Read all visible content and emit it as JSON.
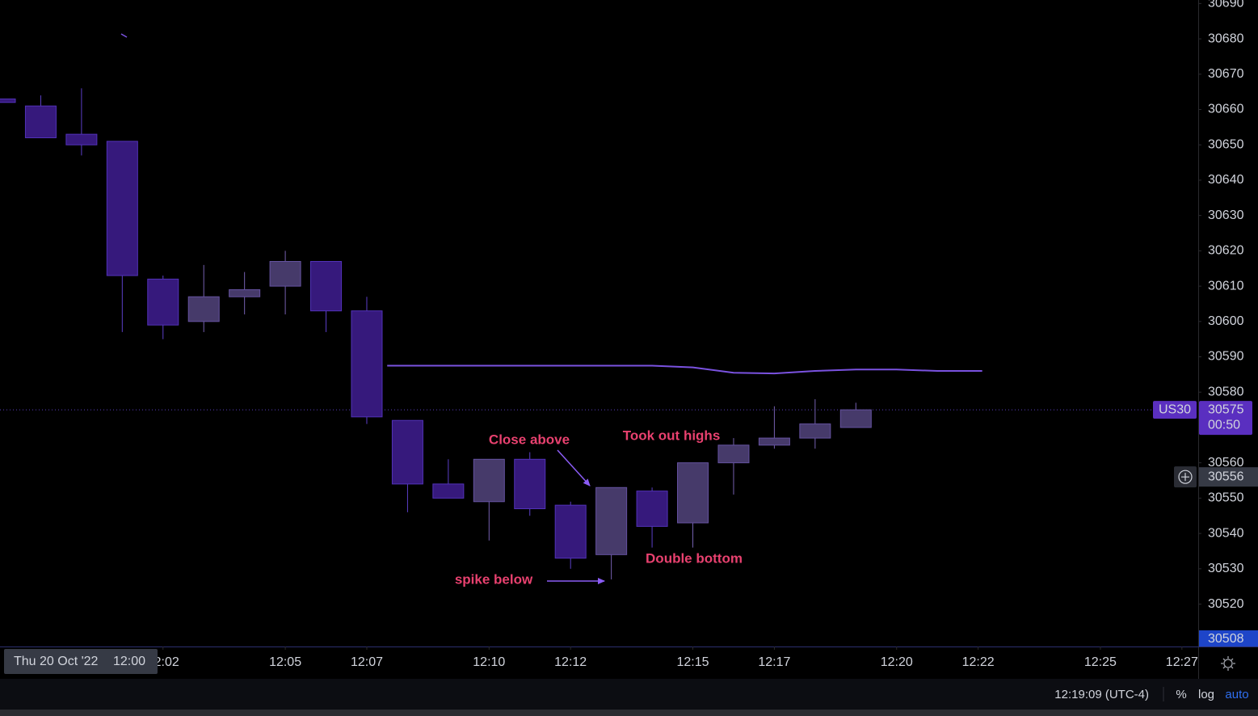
{
  "chart_data": {
    "type": "candlestick",
    "x": [
      718,
      719,
      720,
      721,
      722,
      723,
      724,
      725,
      726,
      727,
      728,
      729,
      730,
      731,
      732,
      733,
      734,
      735,
      736,
      737,
      738,
      739
    ],
    "open": [
      30663,
      30661,
      30653,
      30651,
      30612,
      30600,
      30607,
      30610,
      30617,
      30603,
      30572,
      30554,
      30549,
      30561,
      30548,
      30534,
      30552,
      30543,
      30560,
      30565,
      30567,
      30570
    ],
    "high": [
      30663,
      30664,
      30666,
      30651,
      30613,
      30616,
      30614,
      30620,
      30617,
      30607,
      30572,
      30561,
      30561,
      30563,
      30549,
      30553,
      30553,
      30560,
      30567,
      30576,
      30578,
      30577
    ],
    "low": [
      30662,
      30652,
      30647,
      30597,
      30595,
      30597,
      30602,
      30602,
      30597,
      30571,
      30546,
      30550,
      30538,
      30545,
      30530,
      30527,
      30536,
      30536,
      30551,
      30564,
      30564,
      30570
    ],
    "close": [
      30662,
      30652,
      30650,
      30613,
      30599,
      30607,
      30609,
      30617,
      30603,
      30573,
      30554,
      30550,
      30561,
      30547,
      30533,
      30553,
      30542,
      30560,
      30565,
      30567,
      30571,
      30575
    ],
    "up_color": "#463a6a",
    "down_color": "#36197c",
    "ylim": [
      30508,
      30691
    ],
    "yticks": [
      30520,
      30530,
      30540,
      30550,
      30560,
      30580,
      30590,
      30600,
      30610,
      30620,
      30630,
      30640,
      30650,
      30660,
      30670,
      30680,
      30690
    ],
    "xlim": [
      718,
      747.4
    ],
    "xticks": [
      {
        "value": 722,
        "label": "12:02"
      },
      {
        "value": 725,
        "label": "12:05"
      },
      {
        "value": 727,
        "label": "12:07"
      },
      {
        "value": 730,
        "label": "12:10"
      },
      {
        "value": 732,
        "label": "12:12"
      },
      {
        "value": 735,
        "label": "12:15"
      },
      {
        "value": 737,
        "label": "12:17"
      },
      {
        "value": 740,
        "label": "12:20"
      },
      {
        "value": 742,
        "label": "12:22"
      },
      {
        "value": 745,
        "label": "12:25"
      },
      {
        "value": 747,
        "label": "12:27"
      }
    ],
    "overlay": {
      "type": "line",
      "color": "#7a52e0",
      "x": [
        727.5,
        728,
        729,
        730,
        731,
        732,
        733,
        734,
        735,
        736,
        737,
        738,
        739,
        740,
        741,
        742.1
      ],
      "values": [
        30587.5,
        30587.5,
        30587.5,
        30587.5,
        30587.5,
        30587.5,
        30587.5,
        30587.5,
        30587,
        30585.5,
        30585.3,
        30586,
        30586.4,
        30586.4,
        30586,
        30586
      ]
    },
    "symbol": "US30",
    "last_price": 30575,
    "countdown": "00:50",
    "crosshair_price": 30556,
    "crosshair_date": "Thu 20 Oct '22",
    "crosshair_time": "12:00",
    "low_marker": 30508,
    "annotations": [
      "Close above",
      "Took out highs",
      "spike below",
      "Double bottom"
    ],
    "status_bar": {
      "time": "12:19:09 (UTC-4)",
      "buttons": [
        "%",
        "log",
        "auto"
      ]
    }
  }
}
